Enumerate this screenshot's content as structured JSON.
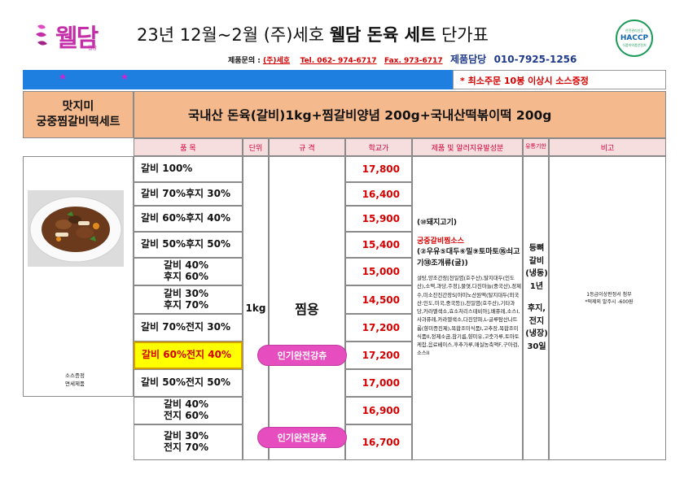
{
  "header": {
    "logo_text": "웰담",
    "logo_sub": "웰담",
    "title_prefix": "23년 12월~2월 (주)세호 ",
    "title_bold": "웰담 돈육 세트",
    "title_suffix": " 단가표"
  },
  "haccp": {
    "line1": "안전관리인증",
    "line2": "HACCP",
    "line3": "식품의약품안전처"
  },
  "contact": {
    "inquiry_label": "제품문의 : ",
    "company": "(주)세호",
    "tel": "Tel. 062- 974-6717",
    "fax": "Fax. 973-6717",
    "manager_label": "제품담당",
    "manager_phone": "010-7925-1256"
  },
  "notice": "* 최소주문 10봉 이상시 소스증정",
  "product": {
    "name_line1": "맛지미",
    "name_line2": "궁중찜갈비떡세트",
    "composition": "국내산 돈육(갈비)1kg+찜갈비양념 200g+국내산떡볶이떡 200g",
    "sauce_note_line1": "소스증정",
    "sauce_note_line2": "면세제품"
  },
  "columns": {
    "item": "품   목",
    "unit": "단위",
    "spec": "규   격",
    "school_price": "학교가",
    "allergens": "제품 및 알러지유발성분",
    "shelf_life": "유통기한",
    "remarks": "비고"
  },
  "rows": [
    {
      "item_line1": "갈비 100%",
      "item_line2": "",
      "price": "17,800",
      "highlight": false,
      "tag": ""
    },
    {
      "item_line1": "갈비 70%후지 30%",
      "item_line2": "",
      "price": "16,400",
      "highlight": false,
      "tag": ""
    },
    {
      "item_line1": "갈비 60%후지 40%",
      "item_line2": "",
      "price": "15,900",
      "highlight": false,
      "tag": ""
    },
    {
      "item_line1": "갈비 50%후지 50%",
      "item_line2": "",
      "price": "15,400",
      "highlight": false,
      "tag": ""
    },
    {
      "item_line1": "갈비 40%",
      "item_line2": "후지 60%",
      "price": "15,000",
      "highlight": false,
      "tag": ""
    },
    {
      "item_line1": "갈비 30%",
      "item_line2": "후지 70%",
      "price": "14,500",
      "highlight": false,
      "tag": ""
    },
    {
      "item_line1": "갈비 70%전지 30%",
      "item_line2": "",
      "price": "17,200",
      "highlight": false,
      "tag": ""
    },
    {
      "item_line1": "갈비 60%전지 40%",
      "item_line2": "",
      "price": "17,200",
      "highlight": true,
      "tag": "인기완전강츄"
    },
    {
      "item_line1": "갈비 50%전지 50%",
      "item_line2": "",
      "price": "17,000",
      "highlight": false,
      "tag": ""
    },
    {
      "item_line1": "갈비 40%",
      "item_line2": "전지 60%",
      "price": "16,900",
      "highlight": false,
      "tag": ""
    },
    {
      "item_line1": "갈비 30%",
      "item_line2": "전지 70%",
      "price": "16,700",
      "highlight": false,
      "tag": "인기완전강츄"
    }
  ],
  "unit_value": "1kg",
  "spec_value": "찜용",
  "allergens": {
    "meat": "(⑩돼지고기)",
    "sauce_title": "궁중갈비찜소스",
    "sauce_allergens": "(②우유⑤대두⑥밀⑨토마토⑯쇠고기⑱조개류(굴))",
    "ingredients": "설탕,양조간장[천일염(호주산),탈지대두(인도산),소맥,과당,주정],물엿,다진마늘(중국산),정제수,미소잔진간장S[아미노산원액(탈지대두(외국산:인도,미국,중국등)),천일염(호주산),기타과당,카라멜색소,효소처리스테비아],배퓨레,소스I,사과퓨레,카라멜색소,다진양파,L-글루탐산나트륨(향미증진제),복합조미식품I,고추장,복합조미식품II,정제소금,참기름,향미유,고춧가루,토마토케찹,음료베이스,후추가루,매실농축액F,구아검,소스II"
  },
  "shelf_life": [
    "등뼈",
    "갈비",
    "(냉동)",
    "1년",
    "",
    "후지,",
    "전지",
    "(냉장)",
    "30일"
  ],
  "remarks": {
    "line1": "1등급이상판정서 첨부",
    "line2": "*떡제외 발주시 -600원"
  }
}
